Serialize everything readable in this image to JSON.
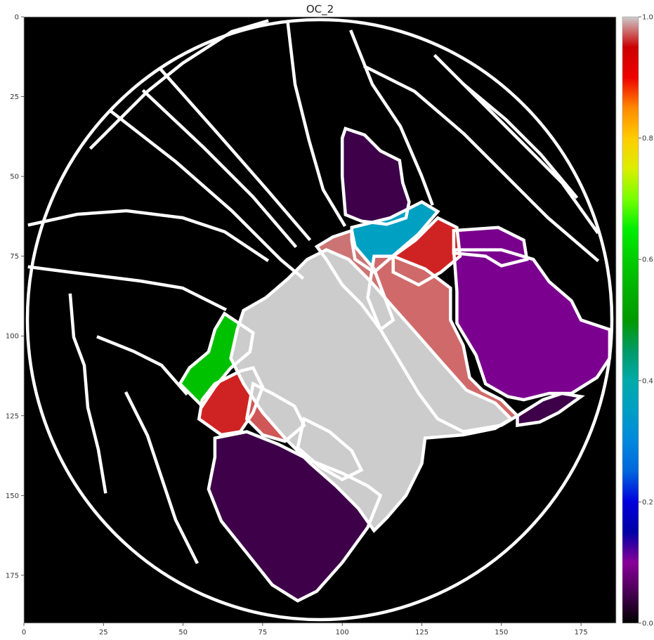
{
  "chart_data": {
    "type": "heatmap",
    "title": "OC_2",
    "x_ticks": [
      0,
      25,
      50,
      75,
      100,
      125,
      150,
      175
    ],
    "y_ticks": [
      0,
      25,
      50,
      75,
      100,
      125,
      150,
      175
    ],
    "x_range": [
      0,
      186
    ],
    "y_range": [
      190,
      0
    ],
    "colorbar": {
      "colormap": "nipy_spectral",
      "range": [
        0.0,
        1.0
      ],
      "ticks": [
        "0.0",
        "0.2",
        "0.4",
        "0.6",
        "0.8",
        "1.0"
      ]
    },
    "background_color": "#000000",
    "outline_color": "#ffffff",
    "regions": [
      {
        "value": 0.05,
        "color": "#3d0049",
        "polygon": [
          [
            101,
            35
          ],
          [
            107,
            37
          ],
          [
            112,
            42
          ],
          [
            118,
            45
          ],
          [
            119,
            52
          ],
          [
            121,
            58
          ],
          [
            120,
            63
          ],
          [
            114,
            65
          ],
          [
            106,
            64
          ],
          [
            101,
            62
          ],
          [
            100,
            50
          ],
          [
            100,
            38
          ]
        ]
      },
      {
        "value": 0.08,
        "color": "#78008c",
        "polygon": [
          [
            135,
            67
          ],
          [
            149,
            66
          ],
          [
            157,
            70
          ],
          [
            158,
            76
          ],
          [
            150,
            78
          ],
          [
            145,
            75
          ],
          [
            135,
            74
          ]
        ]
      },
      {
        "value": 0.09,
        "color": "#7b008f",
        "polygon": [
          [
            135,
            73
          ],
          [
            150,
            73
          ],
          [
            160,
            76
          ],
          [
            165,
            83
          ],
          [
            172,
            89
          ],
          [
            175,
            95
          ],
          [
            184,
            98
          ],
          [
            184,
            107
          ],
          [
            180,
            113
          ],
          [
            172,
            118
          ],
          [
            165,
            118
          ],
          [
            157,
            120
          ],
          [
            152,
            119
          ],
          [
            145,
            115
          ],
          [
            142,
            106
          ],
          [
            136,
            96
          ],
          [
            136,
            86
          ]
        ]
      },
      {
        "value": 0.05,
        "color": "#3d0049",
        "polygon": [
          [
            155,
            125
          ],
          [
            163,
            120
          ],
          [
            169,
            118
          ],
          [
            175,
            119
          ],
          [
            168,
            124
          ],
          [
            162,
            127
          ],
          [
            155,
            128
          ]
        ]
      },
      {
        "value": 0.05,
        "color": "#3d0049",
        "polygon": [
          [
            60,
            132
          ],
          [
            70,
            130
          ],
          [
            80,
            134
          ],
          [
            90,
            139
          ],
          [
            100,
            143
          ],
          [
            108,
            147
          ],
          [
            112,
            150
          ],
          [
            108,
            160
          ],
          [
            100,
            171
          ],
          [
            92,
            180
          ],
          [
            86,
            183
          ],
          [
            78,
            178
          ],
          [
            70,
            168
          ],
          [
            62,
            158
          ],
          [
            58,
            148
          ],
          [
            60,
            138
          ]
        ]
      },
      {
        "value": 0.36,
        "color": "#00a0c2",
        "polygon": [
          [
            103,
            66
          ],
          [
            115,
            63
          ],
          [
            125,
            58
          ],
          [
            130,
            61
          ],
          [
            124,
            68
          ],
          [
            117,
            74
          ],
          [
            110,
            80
          ],
          [
            104,
            76
          ],
          [
            103,
            70
          ]
        ]
      },
      {
        "value": 0.64,
        "color": "#00c100",
        "polygon": [
          [
            63,
            93
          ],
          [
            72,
            99
          ],
          [
            71,
            105
          ],
          [
            65,
            110
          ],
          [
            60,
            116
          ],
          [
            56,
            122
          ],
          [
            49,
            115
          ],
          [
            52,
            110
          ],
          [
            58,
            105
          ],
          [
            60,
            98
          ]
        ]
      },
      {
        "value": 0.9,
        "color": "#cf2323",
        "polygon": [
          [
            116,
            75
          ],
          [
            123,
            70
          ],
          [
            130,
            63
          ],
          [
            136,
            66
          ],
          [
            137,
            75
          ],
          [
            131,
            80
          ],
          [
            124,
            84
          ],
          [
            116,
            80
          ]
        ]
      },
      {
        "value": 0.9,
        "color": "#cf2323",
        "polygon": [
          [
            60,
            115
          ],
          [
            68,
            111
          ],
          [
            72,
            110
          ],
          [
            75,
            116
          ],
          [
            72,
            124
          ],
          [
            68,
            130
          ],
          [
            62,
            131
          ],
          [
            55,
            126
          ],
          [
            56,
            120
          ]
        ]
      },
      {
        "value": 0.93,
        "color": "#d05757",
        "polygon": [
          [
            72,
            115
          ],
          [
            78,
            118
          ],
          [
            85,
            122
          ],
          [
            88,
            128
          ],
          [
            82,
            133
          ],
          [
            75,
            131
          ],
          [
            70,
            126
          ]
        ]
      },
      {
        "value": 0.94,
        "color": "#cc7474",
        "polygon": [
          [
            88,
            126
          ],
          [
            96,
            130
          ],
          [
            103,
            136
          ],
          [
            106,
            142
          ],
          [
            100,
            145
          ],
          [
            93,
            141
          ],
          [
            86,
            135
          ]
        ]
      },
      {
        "value": 0.93,
        "color": "#d06a6a",
        "polygon": [
          [
            110,
            75
          ],
          [
            116,
            75
          ],
          [
            126,
            79
          ],
          [
            134,
            85
          ],
          [
            134,
            95
          ],
          [
            138,
            103
          ],
          [
            140,
            113
          ],
          [
            144,
            117
          ],
          [
            150,
            120
          ],
          [
            155,
            125
          ],
          [
            150,
            128
          ],
          [
            138,
            130
          ],
          [
            130,
            126
          ],
          [
            124,
            118
          ],
          [
            118,
            108
          ],
          [
            112,
            98
          ],
          [
            108,
            88
          ]
        ]
      },
      {
        "value": 0.94,
        "color": "#cc7474",
        "polygon": [
          [
            97,
            69
          ],
          [
            103,
            67
          ],
          [
            104,
            72
          ],
          [
            110,
            79
          ],
          [
            113,
            87
          ],
          [
            116,
            95
          ],
          [
            112,
            98
          ],
          [
            106,
            90
          ],
          [
            100,
            84
          ],
          [
            95,
            76
          ],
          [
            92,
            72
          ]
        ]
      },
      {
        "value": 0.98,
        "color": "#cccccc",
        "polygon": [
          [
            69,
            92
          ],
          [
            76,
            88
          ],
          [
            83,
            82
          ],
          [
            89,
            76
          ],
          [
            95,
            73
          ],
          [
            102,
            76
          ],
          [
            109,
            83
          ],
          [
            116,
            91
          ],
          [
            124,
            100
          ],
          [
            131,
            108
          ],
          [
            139,
            117
          ],
          [
            148,
            121
          ],
          [
            153,
            126
          ],
          [
            148,
            129
          ],
          [
            138,
            131
          ],
          [
            126,
            132
          ],
          [
            125,
            140
          ],
          [
            120,
            150
          ],
          [
            114,
            157
          ],
          [
            110,
            161
          ],
          [
            105,
            154
          ],
          [
            98,
            147
          ],
          [
            90,
            140
          ],
          [
            82,
            132
          ],
          [
            75,
            124
          ],
          [
            69,
            115
          ],
          [
            65,
            107
          ],
          [
            67,
            98
          ]
        ]
      }
    ]
  }
}
